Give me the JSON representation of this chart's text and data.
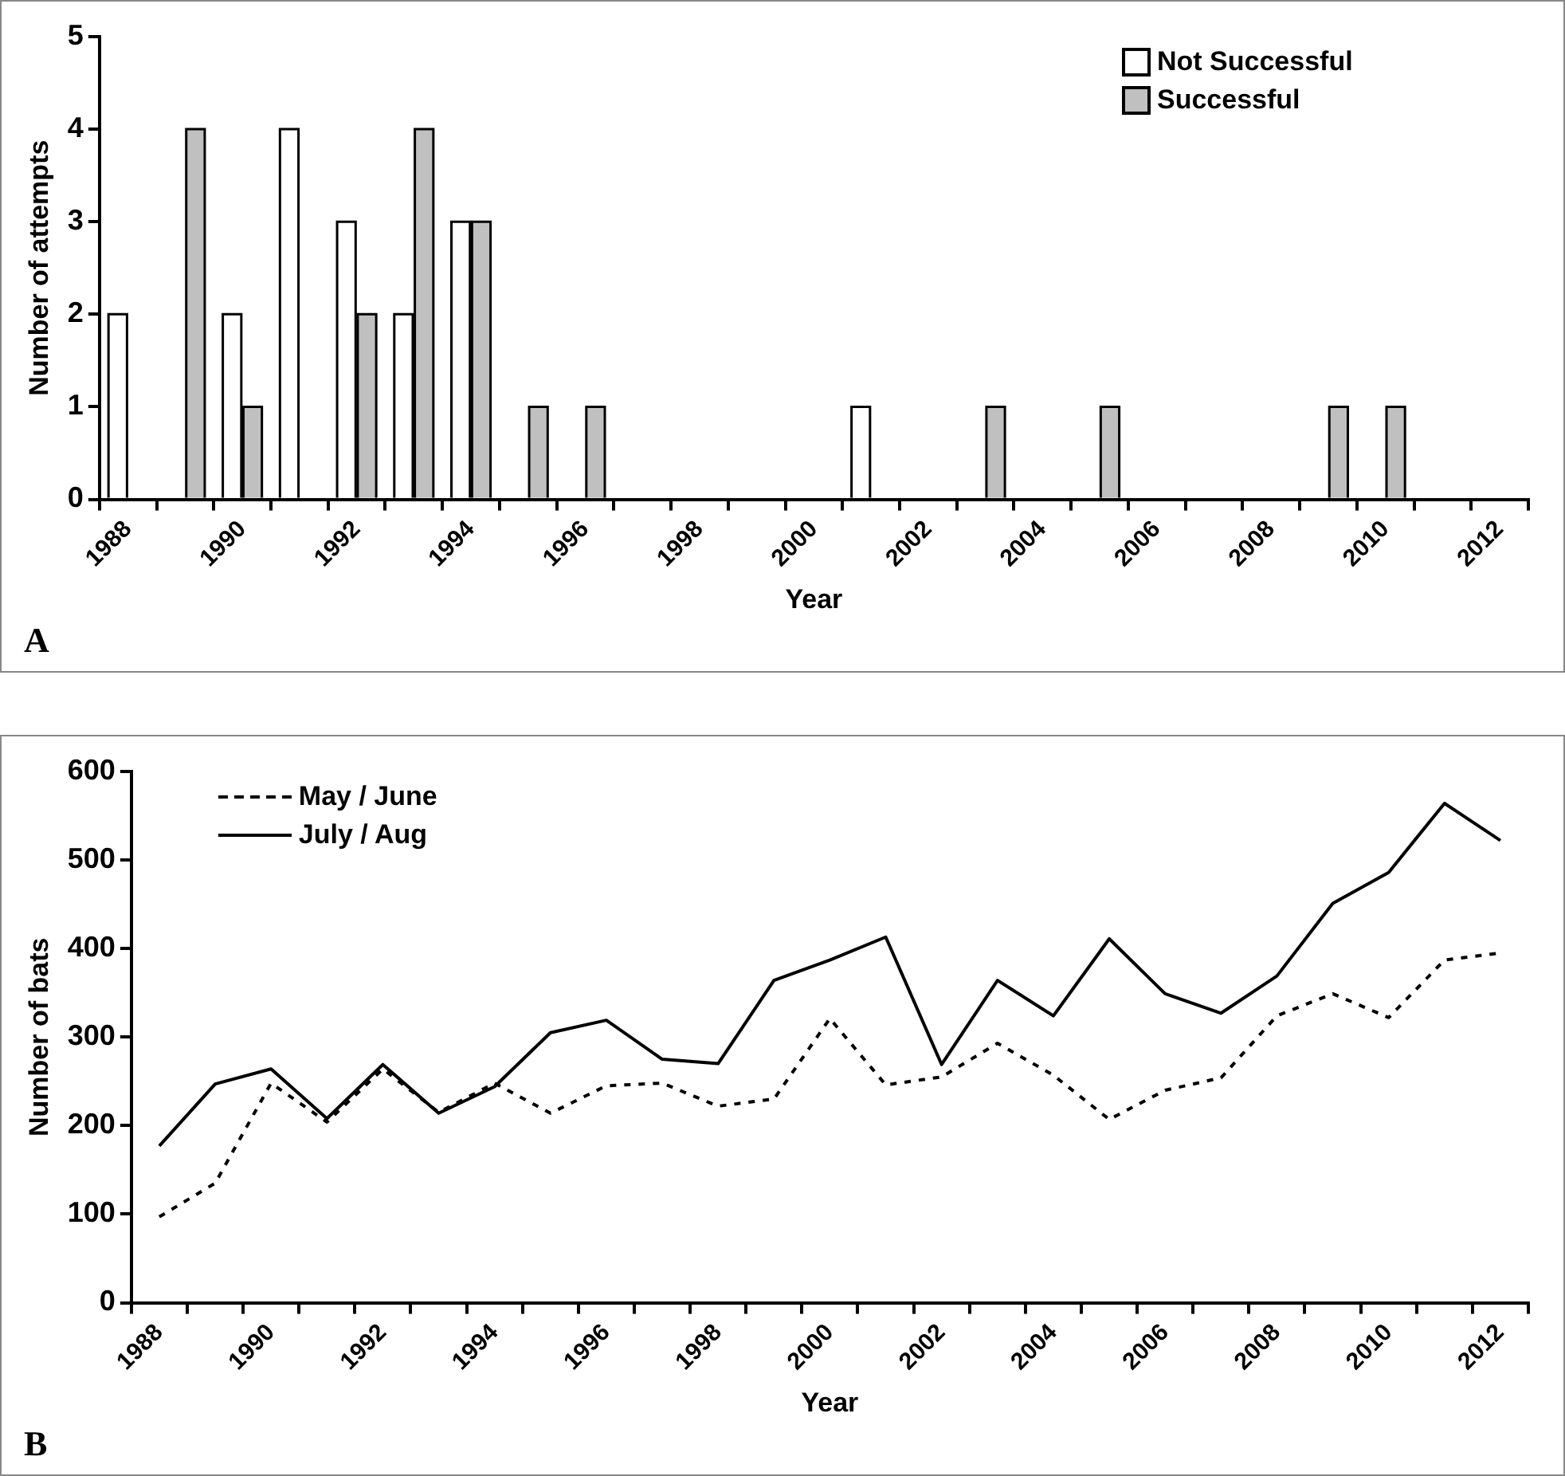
{
  "chart_data": [
    {
      "type": "bar",
      "xlabel": "Year",
      "ylabel": "Number of attempts",
      "categories": [
        "1988",
        null,
        "1990",
        null,
        "1992",
        null,
        "1994",
        null,
        "1996",
        null,
        "1998",
        null,
        "2000",
        null,
        "2002",
        null,
        "2004",
        null,
        "2006",
        null,
        "2008",
        null,
        "2010",
        null,
        "2012"
      ],
      "series": [
        {
          "name": "Not Successful",
          "color": "#ffffff",
          "values": [
            2,
            0,
            2,
            4,
            3,
            2,
            3,
            0,
            0,
            0,
            0,
            0,
            0,
            1,
            0,
            0,
            0,
            0,
            0,
            0,
            0,
            0,
            0,
            0,
            0
          ]
        },
        {
          "name": "Successful",
          "color": "#c0c0c0",
          "values": [
            0,
            4,
            1,
            0,
            2,
            4,
            3,
            1,
            1,
            0,
            0,
            0,
            0,
            0,
            0,
            1,
            0,
            1,
            0,
            0,
            0,
            1,
            1,
            0,
            0
          ]
        }
      ],
      "ylim": [
        0,
        5
      ],
      "yticks": [
        0,
        1,
        2,
        3,
        4,
        5
      ],
      "legend": "top right",
      "annotations": [
        "A"
      ]
    },
    {
      "type": "line",
      "xlabel": "Year",
      "ylabel": "Number of bats",
      "categories": [
        "1988",
        null,
        "1990",
        null,
        "1992",
        null,
        "1994",
        null,
        "1996",
        null,
        "1998",
        null,
        "2000",
        null,
        "2002",
        null,
        "2004",
        null,
        "2006",
        null,
        "2008",
        null,
        "2010",
        null,
        "2012"
      ],
      "series": [
        {
          "name": "May / June",
          "color": "#000000",
          "line_style": "dashed",
          "values": [
            97,
            135,
            248,
            204,
            264,
            215,
            248,
            214,
            245,
            248,
            222,
            230,
            321,
            246,
            255,
            293,
            257,
            207,
            240,
            254,
            324,
            349,
            322,
            387,
            395
          ]
        },
        {
          "name": "July / Aug",
          "color": "#000000",
          "line_style": "solid",
          "values": [
            177,
            247,
            264,
            208,
            269,
            214,
            244,
            305,
            319,
            275,
            270,
            364,
            387,
            413,
            269,
            364,
            324,
            411,
            349,
            327,
            369,
            451,
            486,
            564,
            522
          ]
        }
      ],
      "ylim": [
        0,
        600
      ],
      "yticks": [
        0,
        100,
        200,
        300,
        400,
        500,
        600
      ],
      "marker": "none",
      "legend": "top left",
      "annotations": [
        "B"
      ]
    }
  ]
}
